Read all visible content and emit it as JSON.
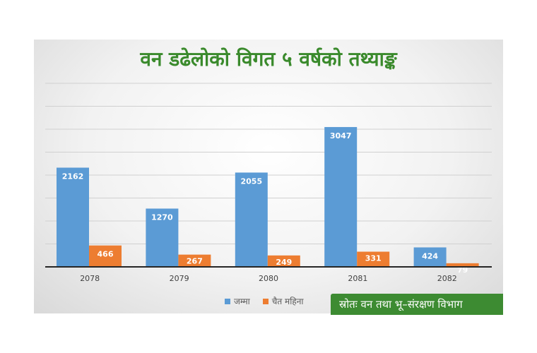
{
  "chart_data": {
    "type": "bar",
    "title": "वन डढेलोको विगत ५ वर्षको तथ्याङ्क",
    "categories": [
      "2078",
      "2079",
      "2080",
      "2081",
      "2082"
    ],
    "series": [
      {
        "name": "जम्मा",
        "color": "#5b9bd5",
        "values": [
          2162,
          1270,
          2055,
          3047,
          424
        ]
      },
      {
        "name": "चैत महिना",
        "color": "#ed7d31",
        "values": [
          466,
          267,
          249,
          331,
          79
        ]
      }
    ],
    "ylim": [
      0,
      4000
    ],
    "grid": true,
    "legend_position": "bottom"
  },
  "source_text": "स्रोतः वन तथा भू–संरक्षण विभाग"
}
